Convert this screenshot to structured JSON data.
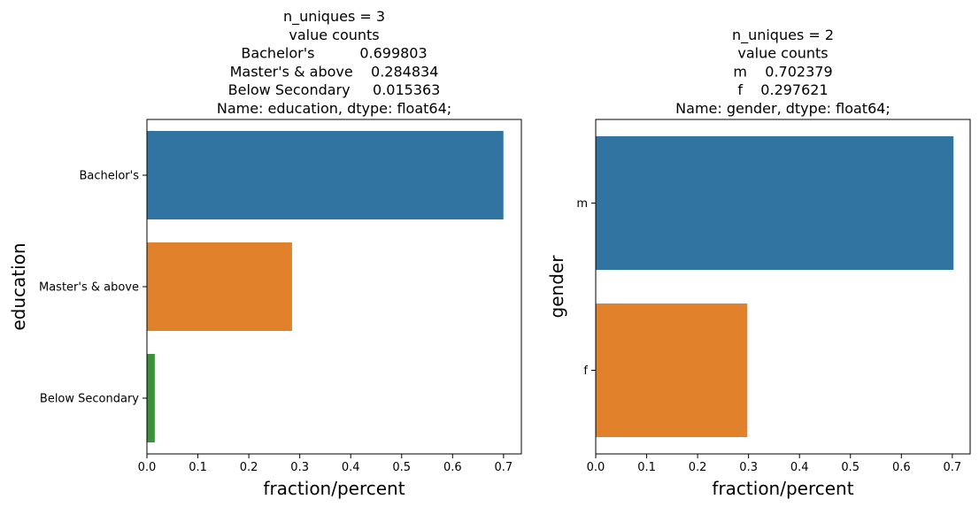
{
  "chart_data": [
    {
      "type": "bar",
      "orientation": "horizontal",
      "title_lines": [
        "n_uniques = 3",
        "value counts",
        "Bachelor's          0.699803",
        "Master's & above    0.284834",
        "Below Secondary     0.015363",
        "Name: education, dtype: float64;"
      ],
      "categories": [
        "Bachelor's",
        "Master's & above",
        "Below Secondary"
      ],
      "values": [
        0.699803,
        0.284834,
        0.015363
      ],
      "colors": [
        "#3274a1",
        "#e1812c",
        "#3a923a"
      ],
      "xlabel": "fraction/percent",
      "ylabel": "education",
      "xlim": [
        0,
        0.735
      ],
      "xticks": [
        "0.0",
        "0.1",
        "0.2",
        "0.3",
        "0.4",
        "0.5",
        "0.6",
        "0.7"
      ],
      "grid": false
    },
    {
      "type": "bar",
      "orientation": "horizontal",
      "title_lines": [
        "n_uniques = 2",
        "value counts",
        "m    0.702379",
        "f    0.297621",
        "Name: gender, dtype: float64;"
      ],
      "categories": [
        "m",
        "f"
      ],
      "values": [
        0.702379,
        0.297621
      ],
      "colors": [
        "#3274a1",
        "#e1812c"
      ],
      "xlabel": "fraction/percent",
      "ylabel": "gender",
      "xlim": [
        0,
        0.735
      ],
      "xticks": [
        "0.0",
        "0.1",
        "0.2",
        "0.3",
        "0.4",
        "0.5",
        "0.6",
        "0.7"
      ],
      "grid": false
    }
  ]
}
